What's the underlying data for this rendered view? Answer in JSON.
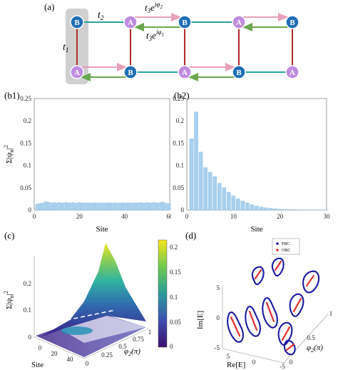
{
  "figure": {
    "panel_a": {
      "label": "(a)",
      "sites": {
        "A": "A",
        "B": "B"
      },
      "hoppings": {
        "t1": "t",
        "t1_sub": "1",
        "t2": "t",
        "t2_sub": "2",
        "t3_phi2": "t",
        "t3_phi2_sub": "3",
        "t3_phi2_exp": "iφ",
        "t3_phi2_exp_sub": "2",
        "t3_phi1": "t",
        "t3_phi1_sub": "3",
        "t3_phi1_exp": "iφ",
        "t3_phi1_exp_sub": "1",
        "e": "e"
      },
      "colors": {
        "siteA": "#c08be0",
        "siteB": "#1f6fb5",
        "t1": "#b22a2a",
        "t2": "#2aa3a3",
        "t3_phi2": "#e8a0b8",
        "t3_phi1": "#6aa84f",
        "unitcell": "#d0d0d0"
      }
    },
    "panel_b1": {
      "label": "(b1)",
      "ylabel": "Σ|ψ",
      "ylabel_sub": "n",
      "ylabel_sup": "2",
      "ylabel_close": "|",
      "xlabel": "Site",
      "xticks": [
        "0",
        "20",
        "40",
        "60"
      ],
      "yticks": [
        "0",
        "0.05",
        "0.1",
        "0.15",
        "0.2",
        "0.25"
      ]
    },
    "panel_b2": {
      "label": "(b2)",
      "xlabel": "Site",
      "xticks": [
        "0",
        "10",
        "20",
        "30"
      ],
      "yticks": [
        "0",
        "0.05",
        "0.1",
        "0.15",
        "0.2",
        "0.25"
      ]
    },
    "panel_c": {
      "label": "(c)",
      "zlabel": "Σ|ψ",
      "zlabel_sub": "n",
      "zlabel_sup": "2",
      "zticks": [
        "0",
        "0.1",
        "0.2"
      ],
      "site_label": "Site",
      "site_ticks": [
        "0",
        "20",
        "40"
      ],
      "phi_label": "φ",
      "phi_label_sub": "2",
      "phi_label_unit": "(π)",
      "phi_ticks": [
        "0",
        "0.25",
        "0.5",
        "0.75",
        "1"
      ],
      "colorbar_ticks": [
        "0",
        "0.05",
        "0.1",
        "0.15",
        "0.2"
      ]
    },
    "panel_d": {
      "label": "(d)",
      "legend": [
        "PBC",
        "OBC"
      ],
      "zlabel": "Im[E]",
      "xlabel": "Re[E]",
      "phi_label": "φ",
      "phi_label_sub": "2",
      "phi_label_unit": "(π)",
      "re_ticks": [
        "5",
        "0",
        "-5"
      ],
      "im_ticks": [
        "-5",
        "0",
        "5"
      ],
      "phi_ticks": [
        "0",
        "0.5",
        "1"
      ],
      "colors": {
        "pbc": "#1a1aa0",
        "obc": "#e03030"
      }
    }
  },
  "chart_data": [
    {
      "type": "bar",
      "panel": "b1",
      "xlabel": "Site",
      "ylabel": "Σ|ψn|2",
      "xlim": [
        0,
        60
      ],
      "ylim": [
        0,
        0.25
      ],
      "x": [
        1,
        2,
        3,
        4,
        5,
        6,
        7,
        8,
        9,
        10,
        11,
        12,
        13,
        14,
        15,
        16,
        17,
        18,
        19,
        20,
        21,
        22,
        23,
        24,
        25,
        26,
        27,
        28,
        29,
        30,
        31,
        32,
        33,
        34,
        35,
        36,
        37,
        38,
        39,
        40,
        41,
        42,
        43,
        44,
        45,
        46,
        47,
        48,
        49,
        50,
        51,
        52,
        53,
        54,
        55,
        56,
        57,
        58,
        59,
        60
      ],
      "values": [
        0.013,
        0.014,
        0.015,
        0.016,
        0.019,
        0.018,
        0.017,
        0.016,
        0.017,
        0.016,
        0.017,
        0.016,
        0.016,
        0.017,
        0.016,
        0.016,
        0.017,
        0.016,
        0.016,
        0.017,
        0.016,
        0.016,
        0.016,
        0.016,
        0.016,
        0.016,
        0.016,
        0.016,
        0.016,
        0.016,
        0.016,
        0.016,
        0.016,
        0.016,
        0.016,
        0.016,
        0.016,
        0.016,
        0.016,
        0.016,
        0.016,
        0.016,
        0.016,
        0.016,
        0.016,
        0.016,
        0.017,
        0.016,
        0.016,
        0.017,
        0.016,
        0.016,
        0.017,
        0.016,
        0.016,
        0.017,
        0.018,
        0.016,
        0.015,
        0.014
      ]
    },
    {
      "type": "bar",
      "panel": "b2",
      "xlabel": "Site",
      "xlim": [
        0,
        30
      ],
      "ylim": [
        0,
        0.25
      ],
      "x": [
        1,
        2,
        3,
        4,
        5,
        6,
        7,
        8,
        9,
        10,
        11,
        12,
        13,
        14,
        15,
        16,
        17,
        18,
        19,
        20,
        21,
        22,
        23,
        24,
        25,
        26,
        27,
        28,
        29,
        30
      ],
      "values": [
        0.16,
        0.22,
        0.13,
        0.095,
        0.085,
        0.075,
        0.06,
        0.05,
        0.04,
        0.032,
        0.025,
        0.02,
        0.016,
        0.012,
        0.009,
        0.007,
        0.005,
        0.004,
        0.003,
        0.002,
        0.0015,
        0.001,
        0.0008,
        0.0005,
        0.0003,
        0.0002,
        0.0001,
        0.0001,
        0.0001,
        0.0001
      ]
    }
  ]
}
